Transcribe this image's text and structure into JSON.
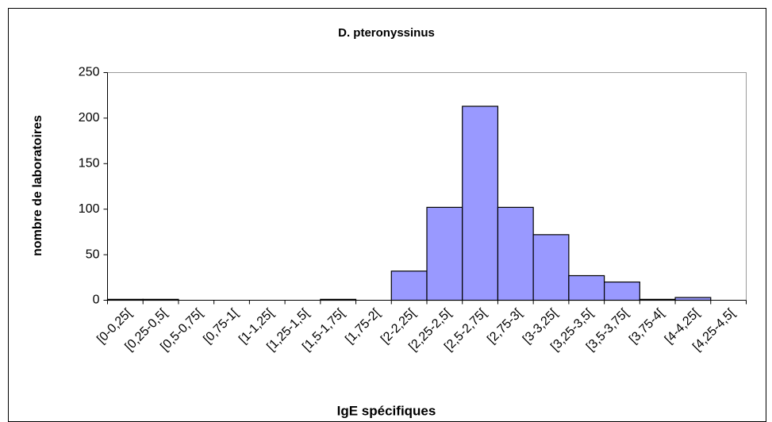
{
  "chart_data": {
    "type": "bar",
    "title": "D. pteronyssinus",
    "x_label": "IgE spécifiques",
    "y_label": "nombre de laboratoires",
    "categories": [
      "[0-0,25[",
      "[0,25-0,5[",
      "[0,5-0,75[",
      "[0,75-1[",
      "[1-1,25[",
      "[1,25-1,5[",
      "[1,5-1,75[",
      "[1,75-2[",
      "[2-2,25[",
      "[2,25-2,5[",
      "[2,5-2,75[",
      "[2,75-3[",
      "[3-3,25[",
      "[3,25-3,5[",
      "[3,5-3,75[",
      "[3,75-4[",
      "[4-4,25[",
      "[4,25-4,5["
    ],
    "values": [
      1,
      1,
      0,
      0,
      0,
      0,
      1,
      0,
      32,
      102,
      213,
      102,
      72,
      27,
      20,
      1,
      3,
      0
    ],
    "color": "#9999ff",
    "ylim": [
      0,
      250
    ],
    "yticks": [
      0,
      50,
      100,
      150,
      200,
      250
    ],
    "grid": false
  }
}
